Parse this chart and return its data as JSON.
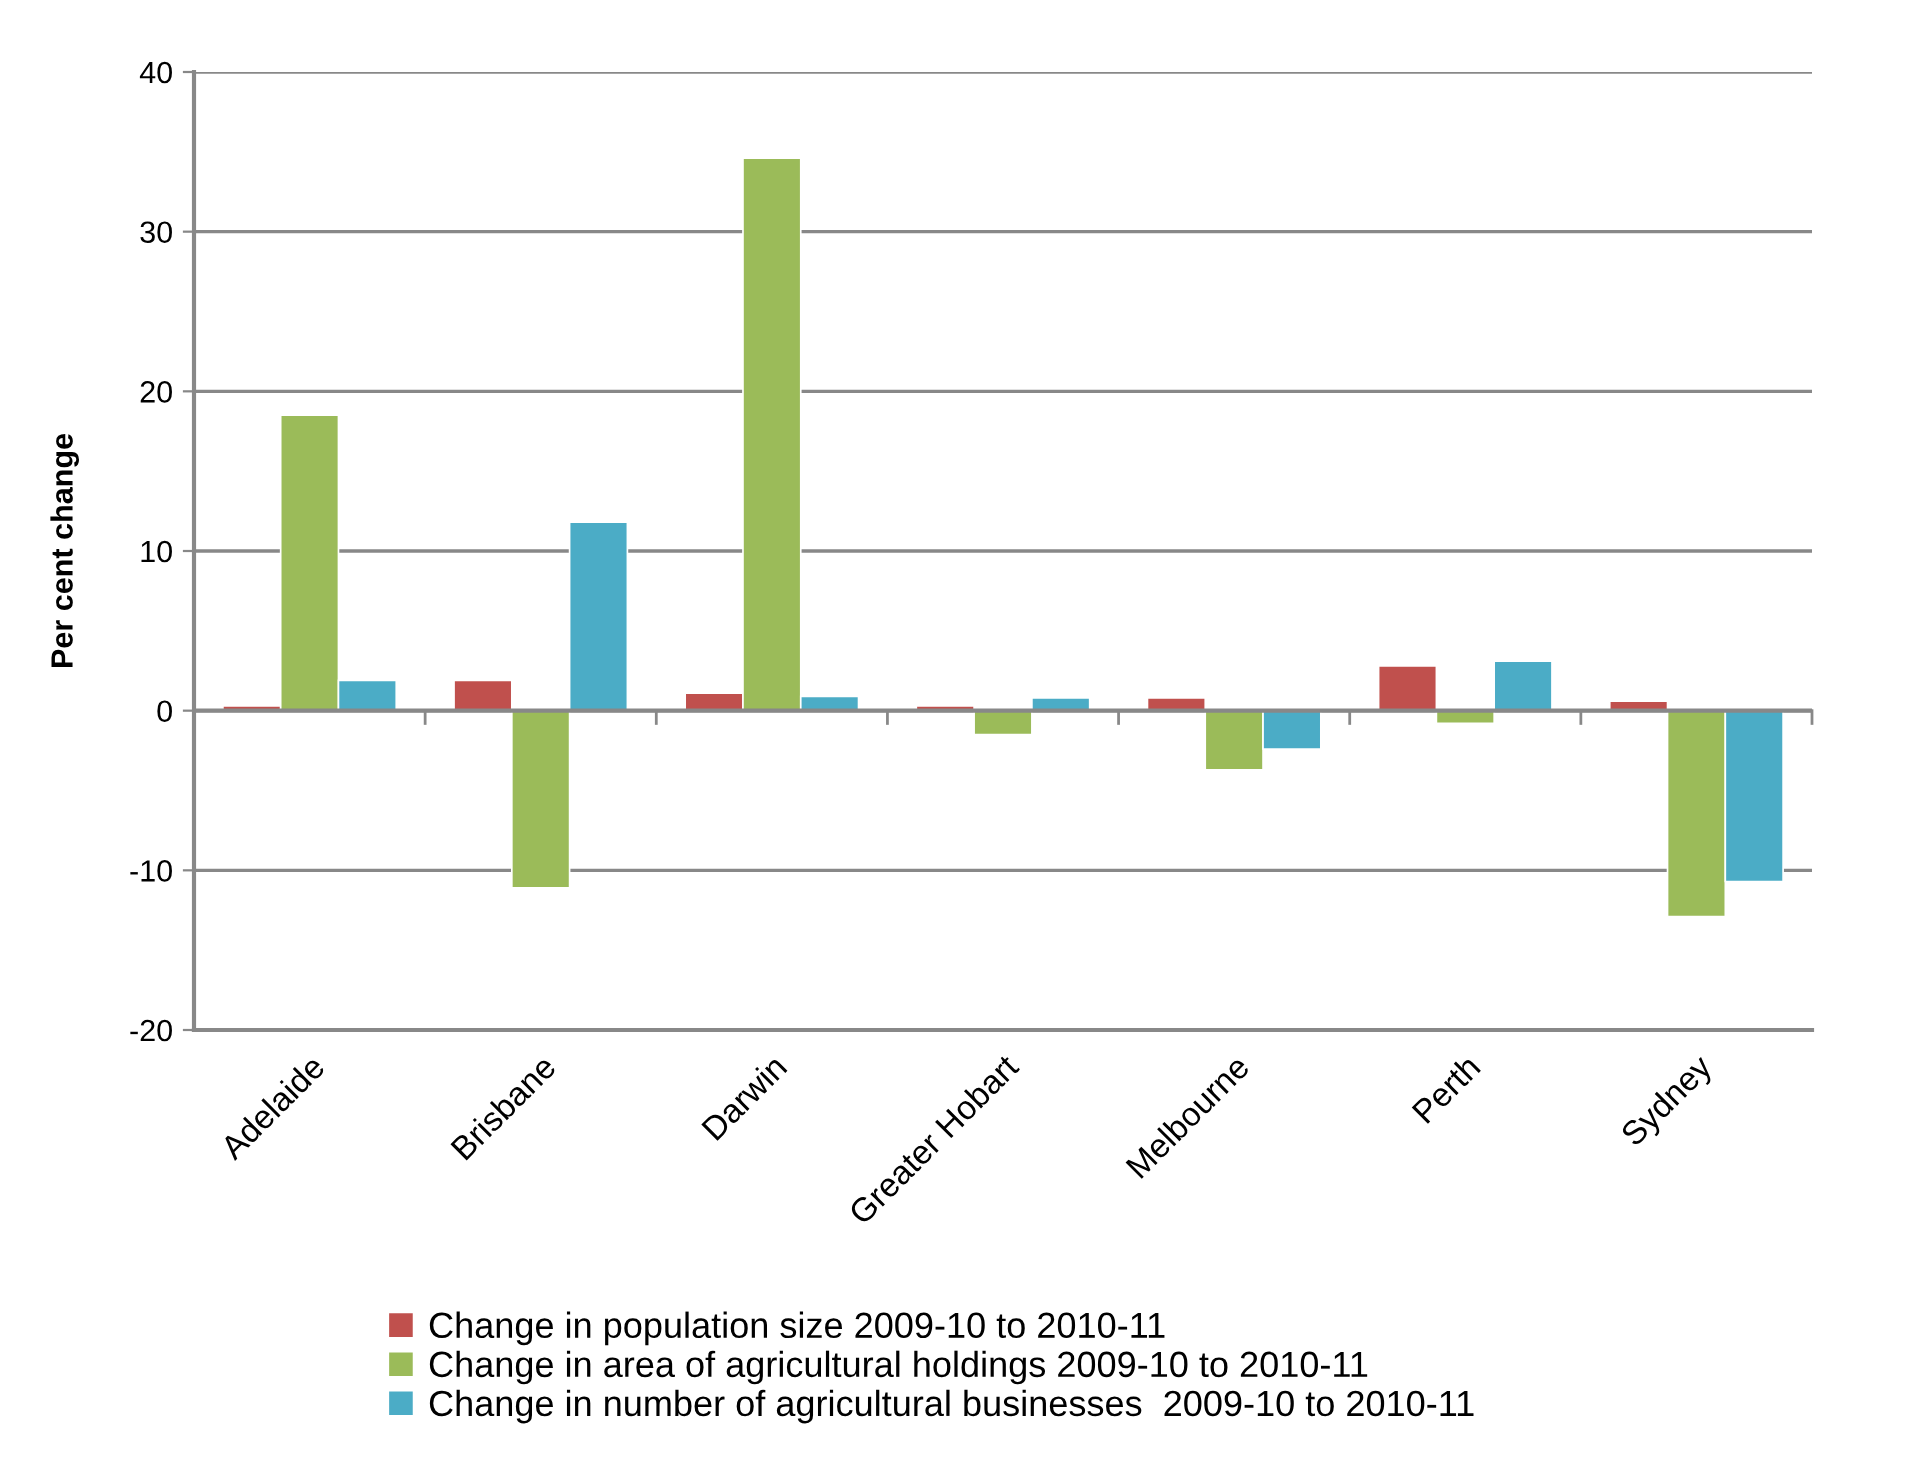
{
  "chart_data": {
    "type": "bar",
    "ylabel": "Per cent change",
    "categories": [
      "Adelaide",
      "Brisbane",
      "Darwin",
      "Greater Hobart",
      "Melbourne",
      "Perth",
      "Sydney"
    ],
    "series": [
      {
        "name": "Change in population size 2009-10 to 2010-11",
        "color": "#c0504d",
        "values": [
          0.3,
          1.9,
          1.1,
          0.3,
          0.8,
          2.8,
          0.6
        ]
      },
      {
        "name": "Change in area of agricultural holdings 2009-10 to 2010-11",
        "color": "#9bbb59",
        "values": [
          18.5,
          -11.1,
          34.6,
          -1.5,
          -3.7,
          -0.8,
          -12.9
        ]
      },
      {
        "name": "Change in number of agricultural businesses  2009-10 to 2010-11",
        "color": "#4bacc6",
        "values": [
          1.9,
          11.8,
          0.9,
          0.8,
          -2.4,
          3.1,
          -10.7
        ]
      }
    ],
    "ylim": [
      -20,
      40
    ],
    "yticks": [
      -20,
      -10,
      0,
      10,
      20,
      30,
      40
    ],
    "grid": "y",
    "legend": "bottom"
  }
}
